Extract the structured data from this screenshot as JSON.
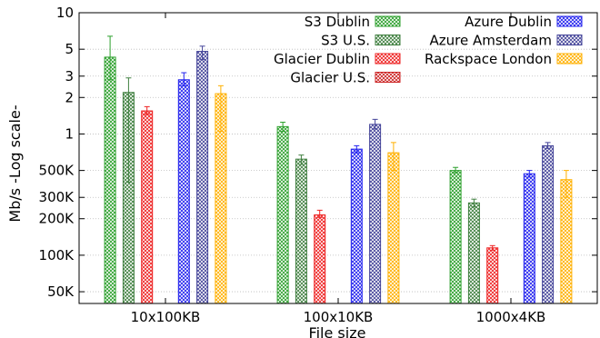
{
  "chart_data": {
    "type": "bar",
    "title": "",
    "xlabel": "File size",
    "ylabel": "Mb/s  -Log scale-",
    "y_scale": "log",
    "ylim": [
      0.04,
      10
    ],
    "grid": true,
    "legend_position": "top-right",
    "categories": [
      "10x100KB",
      "100x10KB",
      "1000x4KB"
    ],
    "yticks": [
      {
        "value": 10,
        "label": "10"
      },
      {
        "value": 5,
        "label": "5"
      },
      {
        "value": 3,
        "label": "3"
      },
      {
        "value": 2,
        "label": "2"
      },
      {
        "value": 1,
        "label": "1"
      },
      {
        "value": 0.5,
        "label": "500K"
      },
      {
        "value": 0.3,
        "label": "300K"
      },
      {
        "value": 0.2,
        "label": "200K"
      },
      {
        "value": 0.1,
        "label": "100K"
      },
      {
        "value": 0.05,
        "label": "50K"
      }
    ],
    "series": [
      {
        "name": "S3 Dublin",
        "color": "#2ca02c",
        "pattern": "cross",
        "values": [
          4.3,
          1.15,
          0.5
        ],
        "err_low": [
          2.8,
          1.05,
          0.48
        ],
        "err_high": [
          6.4,
          1.25,
          0.53
        ]
      },
      {
        "name": "S3 U.S.",
        "color": "#3f7f3f",
        "pattern": "cross",
        "values": [
          2.2,
          0.62,
          0.27
        ],
        "err_low": [
          0.4,
          0.56,
          0.25
        ],
        "err_high": [
          2.9,
          0.67,
          0.29
        ]
      },
      {
        "name": "Glacier Dublin",
        "color": "#ee2222",
        "pattern": "cross",
        "values": [
          1.55,
          0.215,
          0.115
        ],
        "err_low": [
          1.45,
          0.205,
          0.11
        ],
        "err_high": [
          1.68,
          0.235,
          0.12
        ]
      },
      {
        "name": "Glacier U.S.",
        "color": "#cc2222",
        "pattern": "cross",
        "values": [
          null,
          null,
          null
        ]
      },
      {
        "name": "Azure Dublin",
        "color": "#2222ee",
        "pattern": "cross",
        "values": [
          2.8,
          0.75,
          0.47
        ],
        "err_low": [
          2.5,
          0.7,
          0.44
        ],
        "err_high": [
          3.2,
          0.8,
          0.5
        ]
      },
      {
        "name": "Azure Amsterdam",
        "color": "#444499",
        "pattern": "cross",
        "values": [
          4.8,
          1.2,
          0.8
        ],
        "err_low": [
          4.1,
          1.1,
          0.76
        ],
        "err_high": [
          5.3,
          1.32,
          0.85
        ]
      },
      {
        "name": "Rackspace London",
        "color": "#ffb000",
        "pattern": "cross",
        "values": [
          2.15,
          0.7,
          0.42
        ],
        "err_low": [
          1.05,
          0.5,
          0.3
        ],
        "err_high": [
          2.5,
          0.85,
          0.5
        ]
      }
    ]
  }
}
